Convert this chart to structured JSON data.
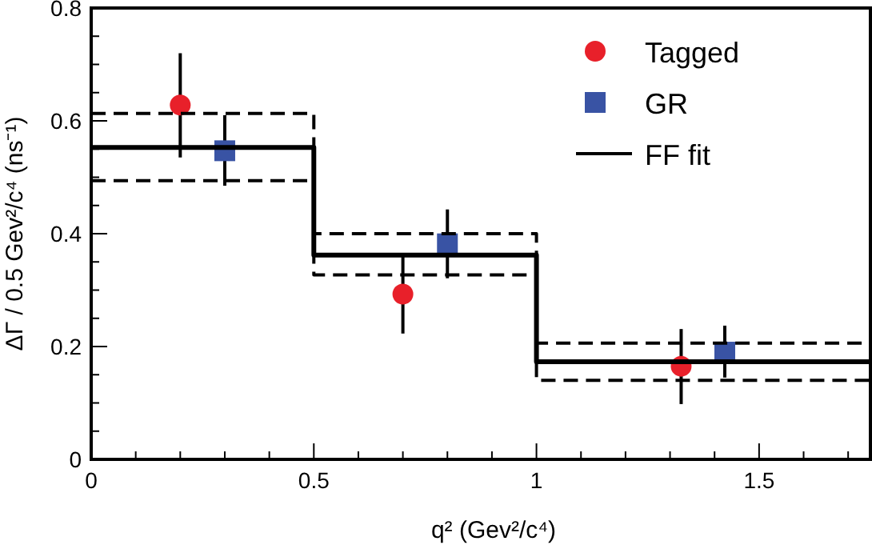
{
  "chart_data": {
    "type": "scatter",
    "xlabel": "q² (Gev²/c⁴)",
    "ylabel": "ΔΓ / 0.5 Gev²/c⁴ (ns⁻¹)",
    "xlim": [
      0,
      1.75
    ],
    "ylim": [
      0,
      0.8
    ],
    "xticks": [
      0,
      {
        "value": 0.1,
        "label": null
      },
      {
        "value": 0.2,
        "label": null
      },
      {
        "value": 0.3,
        "label": null
      },
      {
        "value": 0.4,
        "label": null
      },
      {
        "value": 0.5,
        "label": "0.5"
      },
      {
        "value": 0.6,
        "label": null
      },
      {
        "value": 0.7,
        "label": null
      },
      {
        "value": 0.8,
        "label": null
      },
      {
        "value": 0.9,
        "label": null
      },
      1,
      {
        "value": 1.1,
        "label": null
      },
      {
        "value": 1.2,
        "label": null
      },
      {
        "value": 1.3,
        "label": null
      },
      {
        "value": 1.4,
        "label": null
      },
      1.5,
      {
        "value": 1.6,
        "label": null
      },
      {
        "value": 1.7,
        "label": null
      }
    ],
    "yticks": [
      0,
      {
        "value": 0.05,
        "label": null
      },
      {
        "value": 0.1,
        "label": null
      },
      {
        "value": 0.15,
        "label": null
      },
      0.2,
      {
        "value": 0.25,
        "label": null
      },
      {
        "value": 0.3,
        "label": null
      },
      {
        "value": 0.35,
        "label": null
      },
      0.4,
      {
        "value": 0.45,
        "label": null
      },
      {
        "value": 0.5,
        "label": null
      },
      {
        "value": 0.55,
        "label": null
      },
      0.6,
      {
        "value": 0.65,
        "label": null
      },
      {
        "value": 0.7,
        "label": null
      },
      {
        "value": 0.75,
        "label": null
      },
      0.8
    ],
    "legend": "top right",
    "grid": false,
    "series": [
      {
        "name": "Tagged",
        "marker": "circle",
        "color": "#e8202a",
        "x": [
          0.2,
          0.7,
          1.325
        ],
        "values": [
          0.628,
          0.293,
          0.165
        ],
        "errors": [
          [
            0.535,
            0.72
          ],
          [
            0.223,
            0.36
          ],
          [
            0.098,
            0.231
          ]
        ]
      },
      {
        "name": "GR",
        "marker": "square",
        "color": "#3953a4",
        "x": [
          0.3,
          0.8,
          1.423
        ],
        "values": [
          0.547,
          0.382,
          0.19
        ],
        "errors": [
          [
            0.485,
            0.61
          ],
          [
            0.321,
            0.443
          ],
          [
            0.145,
            0.237
          ]
        ]
      },
      {
        "name": "FF fit",
        "type": "step",
        "line_style": "solid",
        "color": "#000000",
        "x": [
          0,
          0.5,
          1,
          1.75
        ],
        "values": [
          0.553,
          0.362,
          0.173,
          0.173
        ]
      },
      {
        "type": "step",
        "line_style": "dashed",
        "color": "#000000",
        "x": [
          0,
          0.5,
          1,
          1.75
        ],
        "values": [
          0.613,
          0.4,
          0.206,
          0.206
        ]
      },
      {
        "type": "step",
        "line_style": "dashed",
        "color": "#000000",
        "x": [
          0,
          0.5,
          1,
          1.75
        ],
        "values": [
          0.494,
          0.327,
          0.14,
          0.14
        ]
      }
    ]
  }
}
